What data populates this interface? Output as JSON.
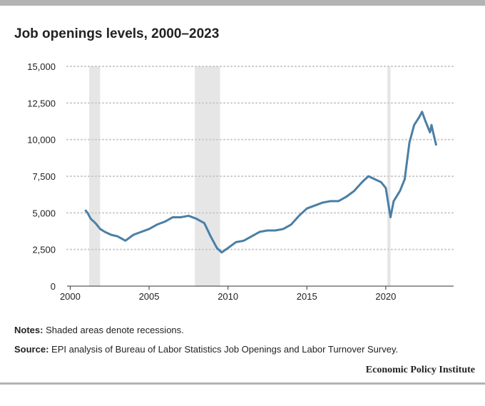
{
  "chart_data": {
    "type": "line",
    "title": "Job openings levels, 2000–2023",
    "x": [
      2000.95,
      2001.1,
      2001.3,
      2001.6,
      2001.9,
      2002.2,
      2002.6,
      2003.0,
      2003.5,
      2004.0,
      2004.5,
      2005.0,
      2005.5,
      2006.0,
      2006.5,
      2007.0,
      2007.5,
      2008.0,
      2008.5,
      2008.9,
      2009.3,
      2009.6,
      2010.0,
      2010.5,
      2011.0,
      2011.5,
      2012.0,
      2012.5,
      2013.0,
      2013.5,
      2014.0,
      2014.5,
      2015.0,
      2015.5,
      2016.0,
      2016.5,
      2017.0,
      2017.5,
      2018.0,
      2018.5,
      2018.9,
      2019.3,
      2019.7,
      2020.0,
      2020.3,
      2020.5,
      2020.9,
      2021.2,
      2021.5,
      2021.8,
      2022.1,
      2022.3,
      2022.5,
      2022.8,
      2022.9,
      2023.0,
      2023.2
    ],
    "series": [
      {
        "color": "#4a7fa6",
        "values": [
          5200,
          5000,
          4600,
          4300,
          3900,
          3700,
          3500,
          3400,
          3100,
          3500,
          3700,
          3900,
          4200,
          4400,
          4700,
          4700,
          4800,
          4600,
          4300,
          3400,
          2600,
          2300,
          2600,
          3000,
          3100,
          3400,
          3700,
          3800,
          3800,
          3900,
          4200,
          4800,
          5300,
          5500,
          5700,
          5800,
          5800,
          6100,
          6500,
          7100,
          7500,
          7300,
          7100,
          6700,
          4700,
          5800,
          6500,
          7300,
          9800,
          11000,
          11500,
          11900,
          11300,
          10500,
          11000,
          10500,
          9600
        ]
      }
    ],
    "recessions": [
      [
        2001.2,
        2001.9
      ],
      [
        2007.9,
        2009.5
      ],
      [
        2020.1,
        2020.3
      ]
    ],
    "xlim": [
      1999.8,
      2024.3
    ],
    "xticks": [
      2000,
      2005,
      2010,
      2015,
      2020
    ],
    "ylim": [
      0,
      15000
    ],
    "yticks": [
      0,
      {
        "value": 2500,
        "label": "2,500"
      },
      {
        "value": 5000,
        "label": "5,000"
      },
      {
        "value": 7500,
        "label": "7,500"
      },
      {
        "value": 10000,
        "label": "10,000"
      },
      {
        "value": 12500,
        "label": "12,500"
      },
      {
        "value": 15000,
        "label": "15,000"
      }
    ],
    "grid": true,
    "notes_label": "Notes:",
    "notes": "Shaded areas denote recessions.",
    "source_label": "Source:",
    "source": "EPI analysis of Bureau of Labor Statistics Job Openings and Labor Turnover Survey.",
    "brand": "Economic Policy Institute"
  }
}
